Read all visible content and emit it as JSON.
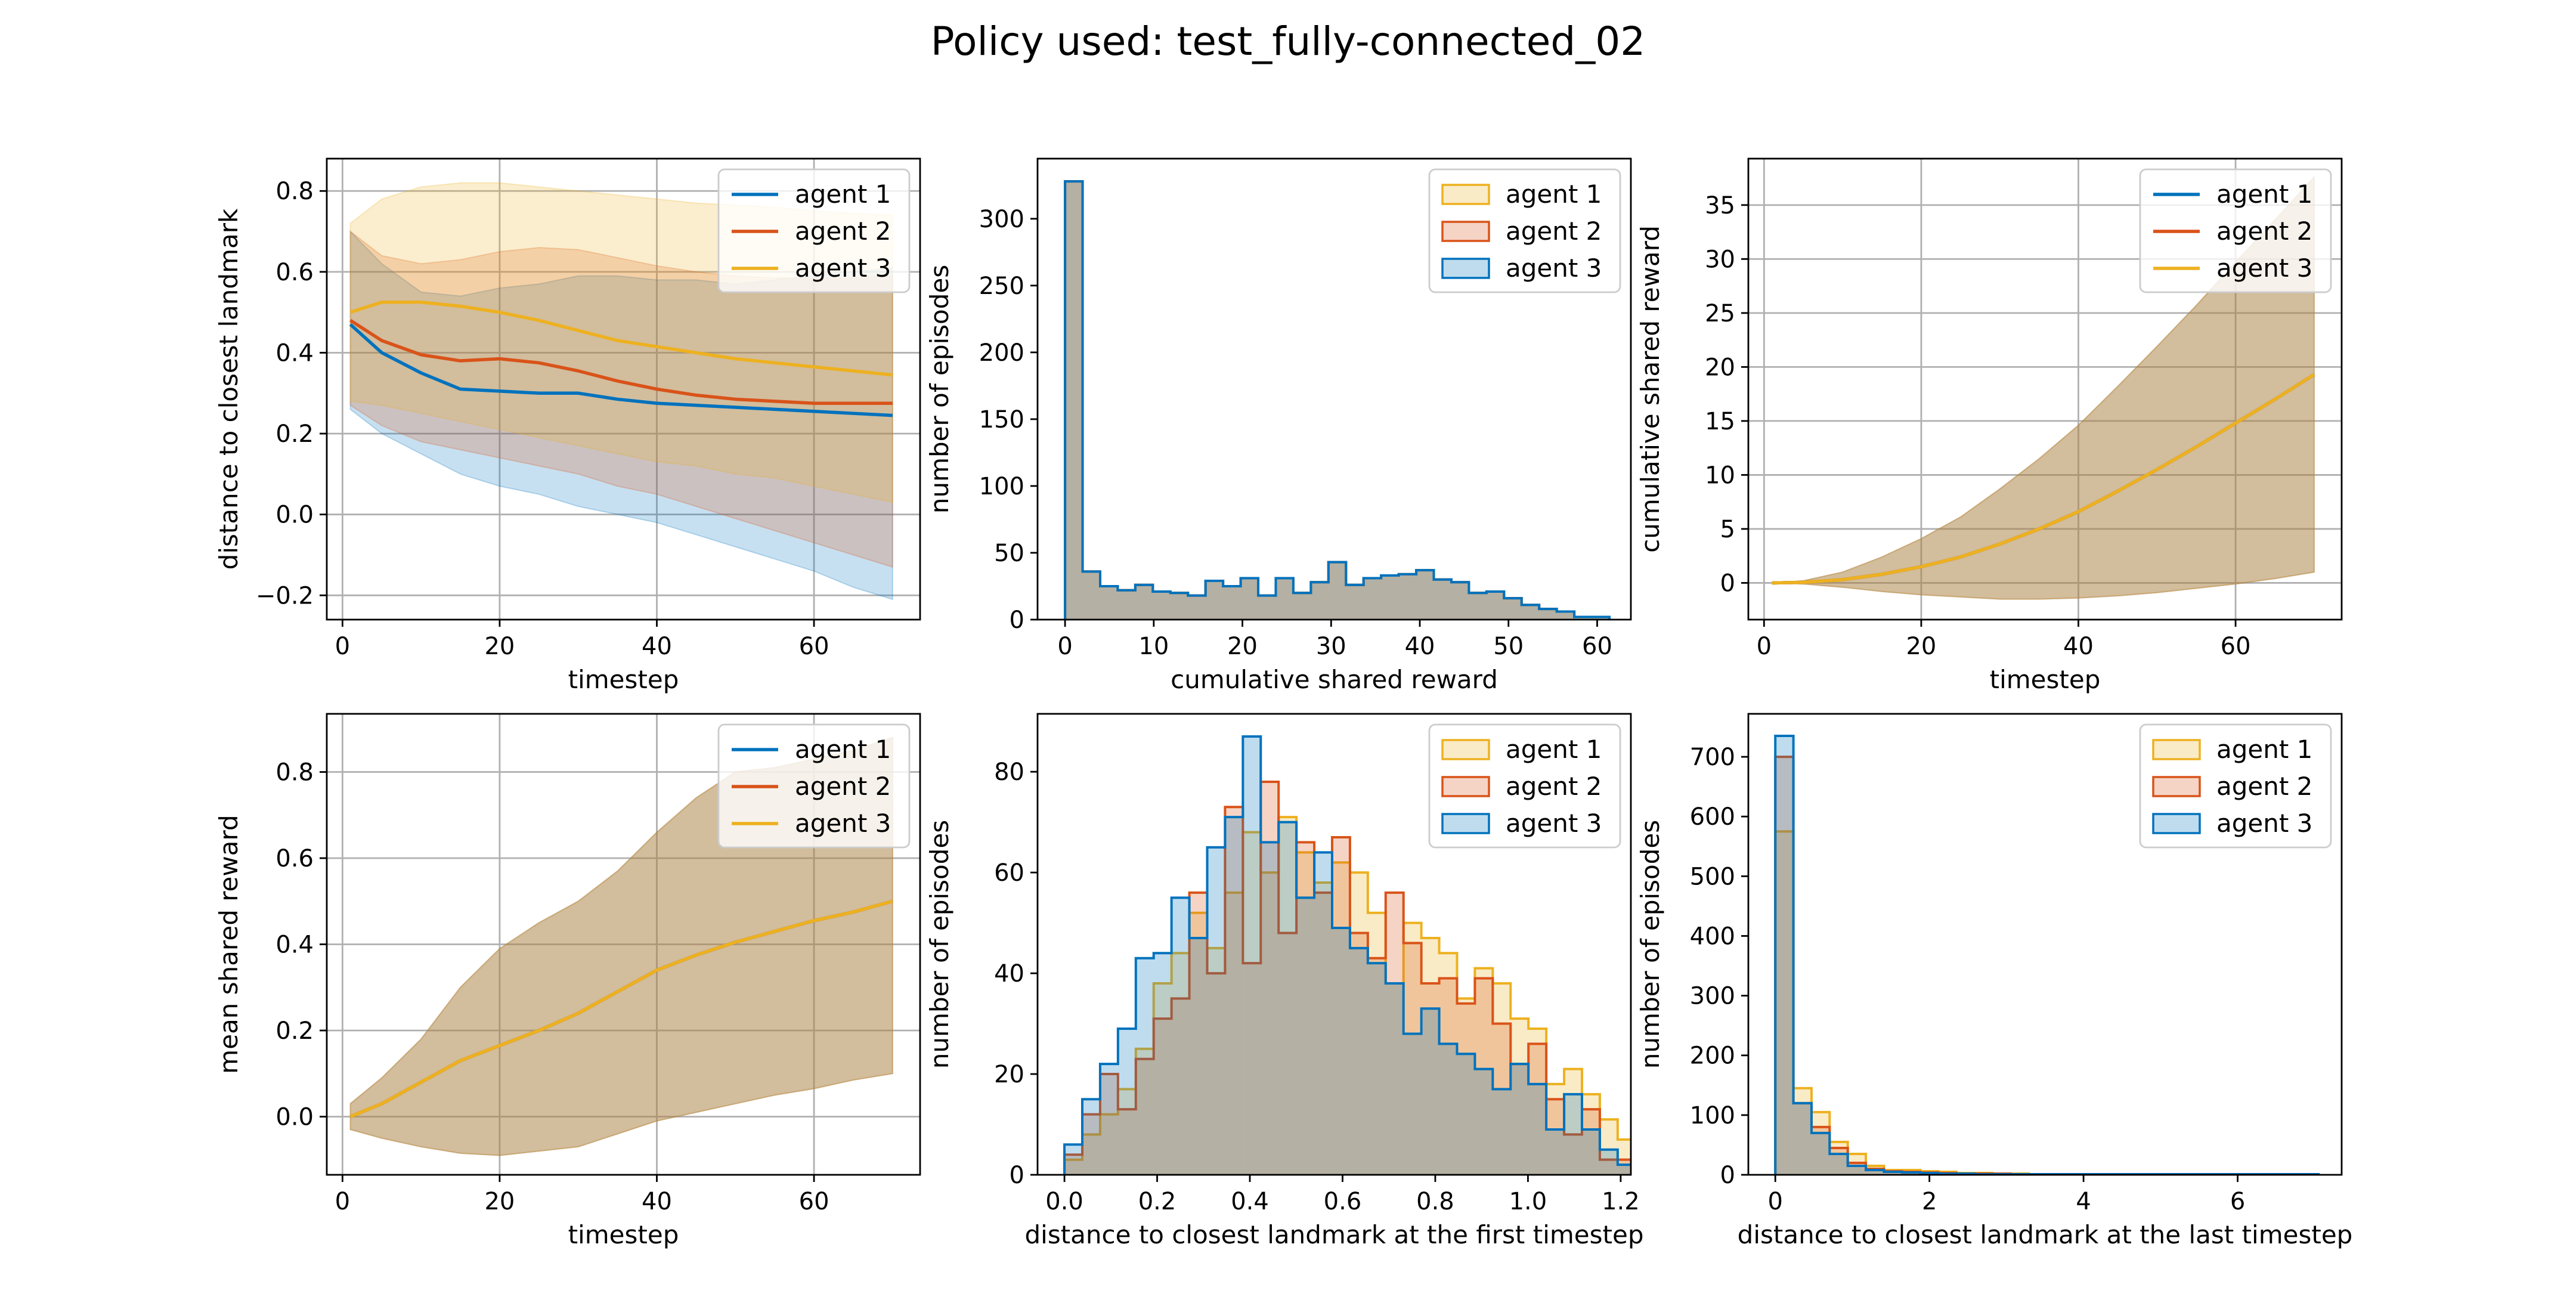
{
  "figure": {
    "title": "Policy used: test_fully-connected_02"
  },
  "colors": {
    "agent_1": "#0072bd",
    "agent_2": "#d95319",
    "agent_3": "#edb120",
    "grid": "#b0b0b0"
  },
  "chart_data": [
    {
      "id": "distance-over-time",
      "type": "line",
      "xlabel": "timestep",
      "ylabel": "distance to closest landmark",
      "xlim": [
        -2,
        73.5
      ],
      "ylim": [
        -0.26,
        0.88
      ],
      "xticks": [
        0,
        20,
        40,
        60
      ],
      "yticks": [
        -0.2,
        0.0,
        0.2,
        0.4,
        0.6,
        0.8
      ],
      "ytick_labels": [
        "−0.2",
        "0.0",
        "0.2",
        "0.4",
        "0.6",
        "0.8"
      ],
      "grid": true,
      "legend": {
        "position": "top-right",
        "kind": "line"
      },
      "x": [
        1,
        5,
        10,
        15,
        20,
        25,
        30,
        35,
        40,
        45,
        50,
        55,
        60,
        65,
        70
      ],
      "series": [
        {
          "name": "agent 1",
          "color": "#0072bd",
          "mean": [
            0.47,
            0.4,
            0.35,
            0.31,
            0.305,
            0.3,
            0.3,
            0.285,
            0.275,
            0.27,
            0.265,
            0.26,
            0.255,
            0.25,
            0.245
          ],
          "lower": [
            0.26,
            0.2,
            0.15,
            0.1,
            0.07,
            0.05,
            0.02,
            0.0,
            -0.02,
            -0.05,
            -0.08,
            -0.11,
            -0.14,
            -0.18,
            -0.21
          ],
          "upper": [
            0.7,
            0.62,
            0.55,
            0.54,
            0.56,
            0.57,
            0.59,
            0.59,
            0.58,
            0.58,
            0.57,
            0.58,
            0.59,
            0.6,
            0.61
          ]
        },
        {
          "name": "agent 2",
          "color": "#d95319",
          "mean": [
            0.48,
            0.43,
            0.395,
            0.38,
            0.385,
            0.375,
            0.355,
            0.33,
            0.31,
            0.295,
            0.285,
            0.28,
            0.275,
            0.275,
            0.275
          ],
          "lower": [
            0.27,
            0.22,
            0.18,
            0.16,
            0.14,
            0.12,
            0.1,
            0.07,
            0.05,
            0.02,
            -0.01,
            -0.04,
            -0.07,
            -0.1,
            -0.13
          ],
          "upper": [
            0.7,
            0.64,
            0.62,
            0.63,
            0.65,
            0.66,
            0.655,
            0.635,
            0.615,
            0.6,
            0.59,
            0.585,
            0.585,
            0.585,
            0.59
          ]
        },
        {
          "name": "agent 3",
          "color": "#edb120",
          "mean": [
            0.5,
            0.525,
            0.525,
            0.515,
            0.5,
            0.48,
            0.455,
            0.43,
            0.415,
            0.4,
            0.385,
            0.375,
            0.365,
            0.355,
            0.345
          ],
          "lower": [
            0.28,
            0.27,
            0.25,
            0.23,
            0.21,
            0.19,
            0.17,
            0.15,
            0.13,
            0.12,
            0.1,
            0.09,
            0.07,
            0.05,
            0.03
          ],
          "upper": [
            0.72,
            0.78,
            0.81,
            0.82,
            0.82,
            0.81,
            0.8,
            0.79,
            0.78,
            0.77,
            0.765,
            0.76,
            0.75,
            0.745,
            0.74
          ]
        }
      ]
    },
    {
      "id": "cumulative-reward-histogram",
      "type": "histogram",
      "xlabel": "cumulative shared reward",
      "ylabel": "number of episodes",
      "xlim": [
        -3.1,
        63.8
      ],
      "ylim": [
        0,
        345
      ],
      "xticks": [
        0,
        10,
        20,
        30,
        40,
        50,
        60
      ],
      "yticks": [
        0,
        50,
        100,
        150,
        200,
        250,
        300
      ],
      "grid": false,
      "legend": {
        "position": "top-right",
        "kind": "patch"
      },
      "bin_start": 0,
      "bin_width": 1.98,
      "series": [
        {
          "name": "agent 1",
          "color": "#edb120",
          "counts": [
            328,
            36,
            25,
            22,
            26,
            21,
            20,
            18,
            29,
            25,
            31,
            18,
            31,
            20,
            28,
            43,
            26,
            31,
            33,
            34,
            37,
            30,
            28,
            20,
            21,
            16,
            11,
            8,
            6,
            2,
            2
          ]
        },
        {
          "name": "agent 2",
          "color": "#d95319",
          "counts": [
            328,
            36,
            25,
            22,
            26,
            21,
            20,
            18,
            29,
            25,
            31,
            18,
            31,
            20,
            28,
            43,
            26,
            31,
            33,
            34,
            37,
            30,
            28,
            20,
            21,
            16,
            11,
            8,
            6,
            2,
            2
          ]
        },
        {
          "name": "agent 3",
          "color": "#0072bd",
          "counts": [
            328,
            36,
            25,
            22,
            26,
            21,
            20,
            18,
            29,
            25,
            31,
            18,
            31,
            20,
            28,
            43,
            26,
            31,
            33,
            34,
            37,
            30,
            28,
            20,
            21,
            16,
            11,
            8,
            6,
            2,
            2
          ]
        }
      ]
    },
    {
      "id": "cumulative-reward-over-time",
      "type": "line",
      "xlabel": "timestep",
      "ylabel": "cumulative shared reward",
      "xlim": [
        -2,
        73.5
      ],
      "ylim": [
        -3.4,
        39.3
      ],
      "xticks": [
        0,
        20,
        40,
        60
      ],
      "yticks": [
        0,
        5,
        10,
        15,
        20,
        25,
        30,
        35
      ],
      "grid": true,
      "legend": {
        "position": "top-right",
        "kind": "line"
      },
      "x": [
        1,
        5,
        10,
        15,
        20,
        25,
        30,
        35,
        40,
        45,
        50,
        55,
        60,
        65,
        70
      ],
      "series": [
        {
          "name": "agent 1",
          "color": "#0072bd",
          "mean": [
            0.0,
            0.05,
            0.3,
            0.8,
            1.5,
            2.4,
            3.6,
            5.0,
            6.6,
            8.5,
            10.5,
            12.6,
            14.8,
            17.0,
            19.3
          ],
          "lower": [
            0.0,
            -0.1,
            -0.4,
            -0.8,
            -1.1,
            -1.3,
            -1.5,
            -1.5,
            -1.4,
            -1.2,
            -0.9,
            -0.5,
            -0.1,
            0.4,
            1.0
          ],
          "upper": [
            0.0,
            0.2,
            1.0,
            2.4,
            4.1,
            6.1,
            8.7,
            11.5,
            14.6,
            18.2,
            21.9,
            25.7,
            29.7,
            33.6,
            37.6
          ]
        },
        {
          "name": "agent 2",
          "color": "#d95319",
          "mean": [
            0.0,
            0.05,
            0.3,
            0.8,
            1.5,
            2.4,
            3.6,
            5.0,
            6.6,
            8.5,
            10.5,
            12.6,
            14.8,
            17.0,
            19.3
          ],
          "lower": [
            0.0,
            -0.1,
            -0.4,
            -0.8,
            -1.1,
            -1.3,
            -1.5,
            -1.5,
            -1.4,
            -1.2,
            -0.9,
            -0.5,
            -0.1,
            0.4,
            1.0
          ],
          "upper": [
            0.0,
            0.2,
            1.0,
            2.4,
            4.1,
            6.1,
            8.7,
            11.5,
            14.6,
            18.2,
            21.9,
            25.7,
            29.7,
            33.6,
            37.6
          ]
        },
        {
          "name": "agent 3",
          "color": "#edb120",
          "mean": [
            0.0,
            0.05,
            0.3,
            0.8,
            1.5,
            2.4,
            3.6,
            5.0,
            6.6,
            8.5,
            10.5,
            12.6,
            14.8,
            17.0,
            19.3
          ],
          "lower": [
            0.0,
            -0.1,
            -0.4,
            -0.8,
            -1.1,
            -1.3,
            -1.5,
            -1.5,
            -1.4,
            -1.2,
            -0.9,
            -0.5,
            -0.1,
            0.4,
            1.0
          ],
          "upper": [
            0.0,
            0.2,
            1.0,
            2.4,
            4.1,
            6.1,
            8.7,
            11.5,
            14.6,
            18.2,
            21.9,
            25.7,
            29.7,
            33.6,
            37.6
          ]
        }
      ]
    },
    {
      "id": "mean-reward-over-time",
      "type": "line",
      "xlabel": "timestep",
      "ylabel": "mean shared reward",
      "xlim": [
        -2,
        73.5
      ],
      "ylim": [
        -0.135,
        0.935
      ],
      "xticks": [
        0,
        20,
        40,
        60
      ],
      "yticks": [
        0.0,
        0.2,
        0.4,
        0.6,
        0.8
      ],
      "ytick_labels": [
        "0.0",
        "0.2",
        "0.4",
        "0.6",
        "0.8"
      ],
      "grid": true,
      "legend": {
        "position": "top-right",
        "kind": "line"
      },
      "x": [
        1,
        5,
        10,
        15,
        20,
        25,
        30,
        35,
        40,
        45,
        50,
        55,
        60,
        65,
        70
      ],
      "series": [
        {
          "name": "agent 1",
          "color": "#0072bd",
          "mean": [
            0.0,
            0.03,
            0.08,
            0.13,
            0.165,
            0.2,
            0.24,
            0.29,
            0.34,
            0.375,
            0.405,
            0.43,
            0.455,
            0.475,
            0.5
          ],
          "lower": [
            -0.03,
            -0.05,
            -0.07,
            -0.085,
            -0.09,
            -0.08,
            -0.07,
            -0.04,
            -0.01,
            0.01,
            0.03,
            0.05,
            0.065,
            0.085,
            0.1
          ],
          "upper": [
            0.03,
            0.09,
            0.18,
            0.3,
            0.39,
            0.45,
            0.5,
            0.57,
            0.66,
            0.74,
            0.8,
            0.81,
            0.83,
            0.85,
            0.88
          ]
        },
        {
          "name": "agent 2",
          "color": "#d95319",
          "mean": [
            0.0,
            0.03,
            0.08,
            0.13,
            0.165,
            0.2,
            0.24,
            0.29,
            0.34,
            0.375,
            0.405,
            0.43,
            0.455,
            0.475,
            0.5
          ],
          "lower": [
            -0.03,
            -0.05,
            -0.07,
            -0.085,
            -0.09,
            -0.08,
            -0.07,
            -0.04,
            -0.01,
            0.01,
            0.03,
            0.05,
            0.065,
            0.085,
            0.1
          ],
          "upper": [
            0.03,
            0.09,
            0.18,
            0.3,
            0.39,
            0.45,
            0.5,
            0.57,
            0.66,
            0.74,
            0.8,
            0.81,
            0.83,
            0.85,
            0.88
          ]
        },
        {
          "name": "agent 3",
          "color": "#edb120",
          "mean": [
            0.0,
            0.03,
            0.08,
            0.13,
            0.165,
            0.2,
            0.24,
            0.29,
            0.34,
            0.375,
            0.405,
            0.43,
            0.455,
            0.475,
            0.5
          ],
          "lower": [
            -0.03,
            -0.05,
            -0.07,
            -0.085,
            -0.09,
            -0.08,
            -0.07,
            -0.04,
            -0.01,
            0.01,
            0.03,
            0.05,
            0.065,
            0.085,
            0.1
          ],
          "upper": [
            0.03,
            0.09,
            0.18,
            0.3,
            0.39,
            0.45,
            0.5,
            0.57,
            0.66,
            0.74,
            0.8,
            0.81,
            0.83,
            0.85,
            0.88
          ]
        }
      ]
    },
    {
      "id": "first-timestep-distance-histogram",
      "type": "histogram",
      "xlabel": "distance to closest landmark at the first timestep",
      "ylabel": "number of episodes",
      "xlim": [
        -0.058,
        1.222
      ],
      "ylim": [
        0,
        91.5
      ],
      "xticks": [
        0.0,
        0.2,
        0.4,
        0.6,
        0.8,
        1.0,
        1.2
      ],
      "xtick_labels": [
        "0.0",
        "0.2",
        "0.4",
        "0.6",
        "0.8",
        "1.0",
        "1.2"
      ],
      "yticks": [
        0,
        20,
        40,
        60,
        80
      ],
      "grid": false,
      "legend": {
        "position": "top-right",
        "kind": "patch"
      },
      "bin_start": 0.0,
      "bin_width": 0.0385,
      "series": [
        {
          "name": "agent 1",
          "color": "#edb120",
          "counts": [
            3,
            8,
            12,
            17,
            25,
            38,
            44,
            52,
            45,
            56,
            68,
            60,
            71,
            64,
            58,
            62,
            60,
            52,
            38,
            50,
            47,
            44,
            35,
            41,
            38,
            31,
            29,
            18,
            21,
            16,
            11,
            7,
            3
          ]
        },
        {
          "name": "agent 2",
          "color": "#d95319",
          "counts": [
            4,
            12,
            20,
            13,
            23,
            31,
            35,
            56,
            40,
            73,
            42,
            78,
            48,
            66,
            56,
            67,
            48,
            43,
            56,
            46,
            38,
            39,
            34,
            39,
            30,
            22,
            26,
            15,
            8,
            13,
            3,
            3,
            1
          ]
        },
        {
          "name": "agent 3",
          "color": "#0072bd",
          "counts": [
            6,
            15,
            22,
            29,
            43,
            44,
            55,
            47,
            65,
            71,
            87,
            66,
            70,
            55,
            64,
            49,
            45,
            42,
            38,
            28,
            33,
            26,
            24,
            21,
            17,
            22,
            18,
            9,
            16,
            9,
            5,
            2,
            1
          ]
        }
      ]
    },
    {
      "id": "last-timestep-distance-histogram",
      "type": "histogram",
      "xlabel": "distance to closest landmark at the last timestep",
      "ylabel": "number of episodes",
      "xlim": [
        -0.35,
        7.35
      ],
      "ylim": [
        0,
        772
      ],
      "xticks": [
        0,
        2,
        4,
        6
      ],
      "yticks": [
        0,
        100,
        200,
        300,
        400,
        500,
        600,
        700
      ],
      "grid": false,
      "legend": {
        "position": "top-right",
        "kind": "patch"
      },
      "bin_start": 0.0,
      "bin_width": 0.235,
      "series": [
        {
          "name": "agent 1",
          "color": "#edb120",
          "counts": [
            575,
            145,
            105,
            55,
            35,
            15,
            8,
            8,
            6,
            5,
            3,
            3,
            2,
            2,
            1,
            1,
            1,
            1,
            1,
            1,
            1,
            1,
            1,
            1,
            1,
            1,
            0,
            0,
            0,
            0
          ]
        },
        {
          "name": "agent 2",
          "color": "#d95319",
          "counts": [
            700,
            120,
            80,
            45,
            20,
            10,
            6,
            5,
            4,
            3,
            2,
            2,
            2,
            1,
            1,
            1,
            1,
            1,
            1,
            1,
            1,
            1,
            1,
            1,
            1,
            0,
            0,
            0,
            0,
            0
          ]
        },
        {
          "name": "agent 3",
          "color": "#0072bd",
          "counts": [
            735,
            120,
            70,
            35,
            15,
            8,
            5,
            4,
            3,
            2,
            2,
            1,
            1,
            1,
            1,
            1,
            1,
            1,
            1,
            1,
            1,
            1,
            1,
            1,
            1,
            1,
            1,
            1,
            1,
            1
          ]
        }
      ]
    }
  ]
}
